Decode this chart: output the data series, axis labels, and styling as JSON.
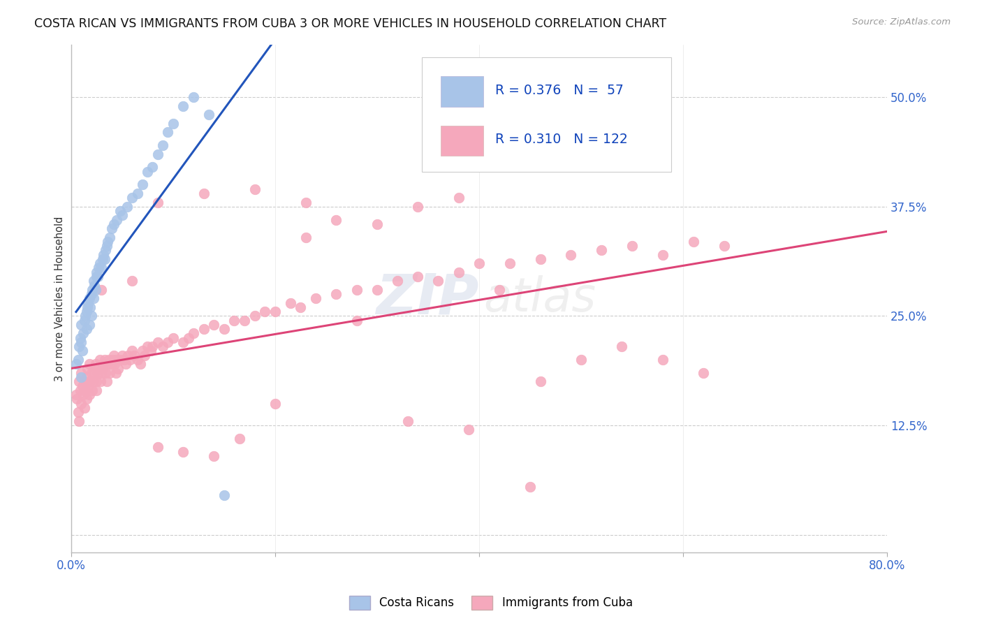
{
  "title": "COSTA RICAN VS IMMIGRANTS FROM CUBA 3 OR MORE VEHICLES IN HOUSEHOLD CORRELATION CHART",
  "source": "Source: ZipAtlas.com",
  "ylabel": "3 or more Vehicles in Household",
  "xlim": [
    0.0,
    0.8
  ],
  "ylim": [
    -0.02,
    0.56
  ],
  "ytick_positions": [
    0.0,
    0.125,
    0.25,
    0.375,
    0.5
  ],
  "yticklabels_right": [
    "",
    "12.5%",
    "25.0%",
    "37.5%",
    "50.0%"
  ],
  "blue_R": 0.376,
  "blue_N": 57,
  "pink_R": 0.31,
  "pink_N": 122,
  "blue_color": "#a8c4e8",
  "blue_line_color": "#2255bb",
  "pink_color": "#f5a8bc",
  "pink_line_color": "#dd4477",
  "background_color": "#ffffff",
  "title_fontsize": 12.5,
  "watermark_zip": "ZIP",
  "watermark_atlas": "atlas",
  "blue_x": [
    0.005,
    0.007,
    0.008,
    0.009,
    0.01,
    0.01,
    0.01,
    0.011,
    0.012,
    0.013,
    0.014,
    0.015,
    0.015,
    0.016,
    0.017,
    0.018,
    0.018,
    0.019,
    0.02,
    0.02,
    0.021,
    0.022,
    0.022,
    0.023,
    0.024,
    0.025,
    0.025,
    0.026,
    0.027,
    0.028,
    0.03,
    0.031,
    0.032,
    0.033,
    0.034,
    0.035,
    0.036,
    0.038,
    0.04,
    0.042,
    0.045,
    0.048,
    0.05,
    0.055,
    0.06,
    0.065,
    0.07,
    0.075,
    0.08,
    0.085,
    0.09,
    0.095,
    0.1,
    0.11,
    0.12,
    0.135,
    0.15
  ],
  "blue_y": [
    0.195,
    0.2,
    0.215,
    0.225,
    0.18,
    0.22,
    0.24,
    0.21,
    0.23,
    0.245,
    0.25,
    0.255,
    0.235,
    0.26,
    0.265,
    0.24,
    0.27,
    0.26,
    0.25,
    0.275,
    0.28,
    0.27,
    0.29,
    0.285,
    0.28,
    0.295,
    0.3,
    0.295,
    0.305,
    0.31,
    0.305,
    0.315,
    0.32,
    0.315,
    0.325,
    0.33,
    0.335,
    0.34,
    0.35,
    0.355,
    0.36,
    0.37,
    0.365,
    0.375,
    0.385,
    0.39,
    0.4,
    0.415,
    0.42,
    0.435,
    0.445,
    0.46,
    0.47,
    0.49,
    0.5,
    0.48,
    0.045
  ],
  "pink_x": [
    0.005,
    0.006,
    0.007,
    0.008,
    0.008,
    0.009,
    0.01,
    0.01,
    0.011,
    0.012,
    0.013,
    0.013,
    0.014,
    0.015,
    0.015,
    0.016,
    0.017,
    0.018,
    0.018,
    0.019,
    0.02,
    0.021,
    0.022,
    0.023,
    0.024,
    0.025,
    0.025,
    0.026,
    0.027,
    0.028,
    0.029,
    0.03,
    0.031,
    0.032,
    0.033,
    0.034,
    0.035,
    0.036,
    0.037,
    0.038,
    0.04,
    0.041,
    0.042,
    0.043,
    0.044,
    0.045,
    0.046,
    0.048,
    0.05,
    0.052,
    0.054,
    0.056,
    0.058,
    0.06,
    0.062,
    0.065,
    0.068,
    0.07,
    0.072,
    0.075,
    0.078,
    0.08,
    0.085,
    0.09,
    0.095,
    0.1,
    0.11,
    0.115,
    0.12,
    0.13,
    0.14,
    0.15,
    0.16,
    0.17,
    0.18,
    0.19,
    0.2,
    0.215,
    0.225,
    0.24,
    0.26,
    0.28,
    0.3,
    0.32,
    0.34,
    0.36,
    0.38,
    0.4,
    0.43,
    0.46,
    0.49,
    0.52,
    0.55,
    0.58,
    0.61,
    0.64,
    0.03,
    0.06,
    0.085,
    0.11,
    0.14,
    0.165,
    0.2,
    0.23,
    0.26,
    0.3,
    0.34,
    0.38,
    0.42,
    0.46,
    0.5,
    0.54,
    0.58,
    0.62,
    0.085,
    0.13,
    0.18,
    0.23,
    0.28,
    0.33,
    0.39,
    0.45
  ],
  "pink_y": [
    0.16,
    0.155,
    0.14,
    0.175,
    0.13,
    0.165,
    0.15,
    0.185,
    0.17,
    0.16,
    0.145,
    0.175,
    0.165,
    0.155,
    0.18,
    0.19,
    0.17,
    0.16,
    0.195,
    0.175,
    0.185,
    0.165,
    0.175,
    0.185,
    0.195,
    0.175,
    0.165,
    0.185,
    0.19,
    0.2,
    0.175,
    0.185,
    0.19,
    0.195,
    0.2,
    0.185,
    0.175,
    0.195,
    0.2,
    0.185,
    0.195,
    0.2,
    0.205,
    0.195,
    0.185,
    0.2,
    0.19,
    0.2,
    0.205,
    0.2,
    0.195,
    0.205,
    0.2,
    0.21,
    0.205,
    0.2,
    0.195,
    0.21,
    0.205,
    0.215,
    0.21,
    0.215,
    0.22,
    0.215,
    0.22,
    0.225,
    0.22,
    0.225,
    0.23,
    0.235,
    0.24,
    0.235,
    0.245,
    0.245,
    0.25,
    0.255,
    0.255,
    0.265,
    0.26,
    0.27,
    0.275,
    0.28,
    0.28,
    0.29,
    0.295,
    0.29,
    0.3,
    0.31,
    0.31,
    0.315,
    0.32,
    0.325,
    0.33,
    0.32,
    0.335,
    0.33,
    0.28,
    0.29,
    0.1,
    0.095,
    0.09,
    0.11,
    0.15,
    0.34,
    0.36,
    0.355,
    0.375,
    0.385,
    0.28,
    0.175,
    0.2,
    0.215,
    0.2,
    0.185,
    0.38,
    0.39,
    0.395,
    0.38,
    0.245,
    0.13,
    0.12,
    0.055
  ]
}
